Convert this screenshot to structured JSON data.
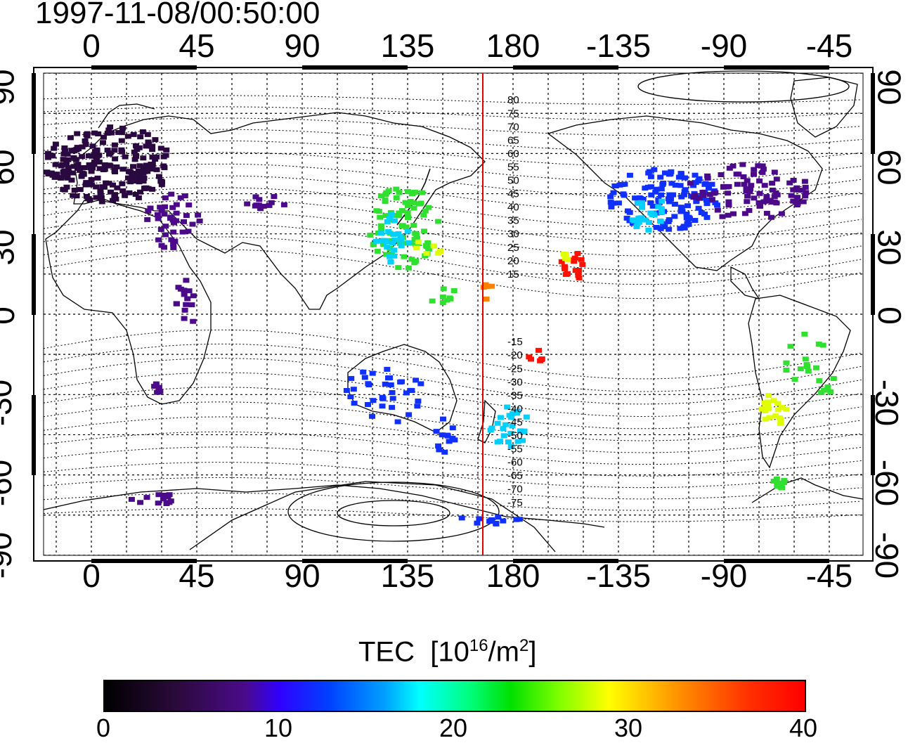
{
  "title": "1997-11-08/00:50:00",
  "lon_ticks": [
    "0",
    "45",
    "90",
    "135",
    "180",
    "-135",
    "-90",
    "-45"
  ],
  "lat_ticks": [
    "90",
    "60",
    "30",
    "0",
    "-30",
    "-60",
    "-90"
  ],
  "mlat_labels": [
    "80",
    "75",
    "70",
    "65",
    "60",
    "55",
    "50",
    "45",
    "40",
    "35",
    "30",
    "25",
    "20",
    "15",
    "-15",
    "-20",
    "-25",
    "-30",
    "-35",
    "-40",
    "-45",
    "-50",
    "-55",
    "-60",
    "-65",
    "-70",
    "-75"
  ],
  "colorbar": {
    "title": "TEC",
    "unit_base": "[10",
    "unit_exp1": "16",
    "unit_mid": "/m",
    "unit_exp2": "2",
    "unit_end": "]",
    "ticks": [
      "0",
      "10",
      "20",
      "30",
      "40"
    ],
    "range": [
      0,
      40
    ]
  },
  "colors": {
    "meridian_line": "#e00000",
    "purple": "#4a0a8a",
    "dark_purple": "#2a0840",
    "blue": "#1030ff",
    "cyan": "#00d0ff",
    "green": "#30e030",
    "yellow": "#e0ff00",
    "orange": "#ff8000",
    "red": "#ff1000"
  }
}
